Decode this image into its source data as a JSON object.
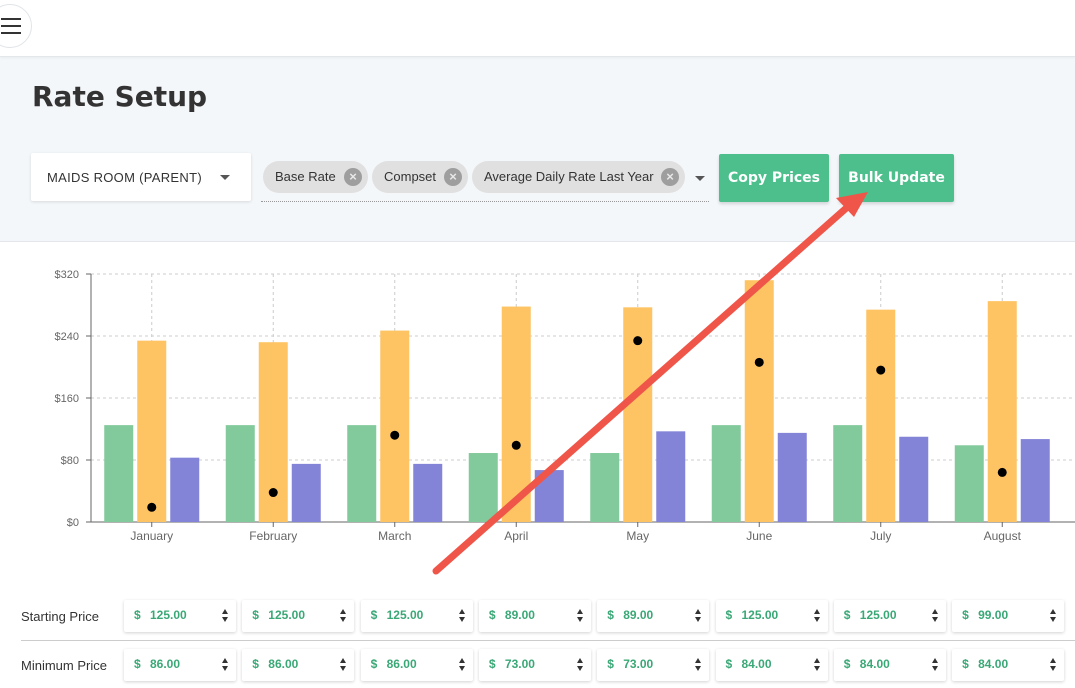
{
  "page": {
    "title": "Rate Setup"
  },
  "toolbar": {
    "room_select": {
      "value": "MAIDS ROOM (PARENT)"
    },
    "chips": [
      {
        "label": "Base Rate"
      },
      {
        "label": "Compset"
      },
      {
        "label": "Average Daily Rate Last Year"
      }
    ],
    "copy_prices_label": "Copy Prices",
    "bulk_update_label": "Bulk Update"
  },
  "colors": {
    "accent_green": "#4cbf8c",
    "series_green": "#82c99b",
    "series_orange": "#fec464",
    "series_purple": "#8384d8",
    "annotation_arrow": "#ef5548"
  },
  "chart_data": {
    "type": "bar",
    "categories": [
      "January",
      "February",
      "March",
      "April",
      "May",
      "June",
      "July",
      "August"
    ],
    "series": [
      {
        "values": [
          125,
          125,
          125,
          89,
          89,
          125,
          125,
          99
        ],
        "color": "#82c99b"
      },
      {
        "values": [
          234,
          232,
          247,
          278,
          277,
          312,
          274,
          285
        ],
        "color": "#fec464"
      },
      {
        "values": [
          83,
          75,
          75,
          67,
          117,
          115,
          110,
          107
        ],
        "color": "#8384d8"
      },
      {
        "type": "scatter",
        "values": [
          19,
          38,
          112,
          99,
          234,
          206,
          196,
          64
        ],
        "color": "#000000"
      }
    ],
    "y_ticks": [
      "$0",
      "$80",
      "$160",
      "$240",
      "$320"
    ],
    "ylim": [
      0,
      320
    ],
    "grid": true
  },
  "price_rows": [
    {
      "label": "Starting Price",
      "currency": "$",
      "values": [
        "125.00",
        "125.00",
        "125.00",
        "89.00",
        "89.00",
        "125.00",
        "125.00",
        "99.00"
      ]
    },
    {
      "label": "Minimum Price",
      "currency": "$",
      "values": [
        "86.00",
        "86.00",
        "86.00",
        "73.00",
        "73.00",
        "84.00",
        "84.00",
        "84.00"
      ]
    }
  ]
}
